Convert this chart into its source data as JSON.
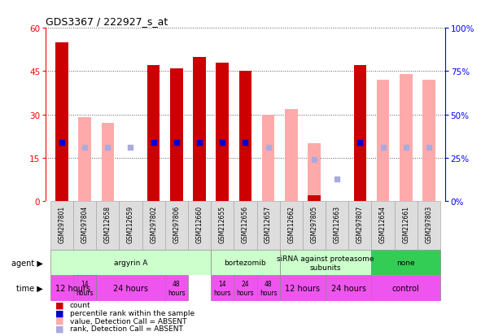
{
  "title": "GDS3367 / 222927_s_at",
  "samples": [
    "GSM297801",
    "GSM297804",
    "GSM212658",
    "GSM212659",
    "GSM297802",
    "GSM297806",
    "GSM212660",
    "GSM212655",
    "GSM212656",
    "GSM212657",
    "GSM212662",
    "GSM297805",
    "GSM212663",
    "GSM297807",
    "GSM212654",
    "GSM212661",
    "GSM297803"
  ],
  "count_present": [
    55,
    0,
    0,
    0,
    47,
    46,
    50,
    48,
    45,
    0,
    0,
    2,
    0,
    47,
    0,
    0,
    0
  ],
  "count_absent": [
    0,
    29,
    27,
    0,
    0,
    0,
    0,
    0,
    0,
    30,
    32,
    20,
    0,
    0,
    42,
    44,
    42
  ],
  "rank_present": [
    34,
    0,
    0,
    0,
    34,
    34,
    34,
    34,
    34,
    0,
    0,
    0,
    0,
    34,
    0,
    0,
    0
  ],
  "rank_absent": [
    0,
    31,
    31,
    31,
    0,
    0,
    0,
    0,
    0,
    31,
    0,
    24,
    13,
    0,
    31,
    31,
    31
  ],
  "ylim_left": [
    0,
    60
  ],
  "ylim_right": [
    0,
    100
  ],
  "yticks_left": [
    0,
    15,
    30,
    45,
    60
  ],
  "yticks_right": [
    0,
    25,
    50,
    75,
    100
  ],
  "ytick_labels_right": [
    "0%",
    "25%",
    "50%",
    "75%",
    "100%"
  ],
  "color_count_present": "#cc0000",
  "color_count_absent": "#ffaaaa",
  "color_rank_present": "#0000cc",
  "color_rank_absent": "#aaaadd",
  "bar_width": 0.55,
  "agent_data": [
    {
      "label": "argyrin A",
      "start": 0,
      "end": 7,
      "color": "#ccffcc"
    },
    {
      "label": "bortezomib",
      "start": 7,
      "end": 10,
      "color": "#ccffcc"
    },
    {
      "label": "siRNA against proteasome\nsubunits",
      "start": 10,
      "end": 14,
      "color": "#ccffcc"
    },
    {
      "label": "none",
      "start": 14,
      "end": 17,
      "color": "#33cc55"
    }
  ],
  "time_data": [
    {
      "label": "12 hours",
      "start": 0,
      "end": 2,
      "fs": 7
    },
    {
      "label": "14\nhours",
      "start": 1,
      "end": 2,
      "fs": 5.5
    },
    {
      "label": "24 hours",
      "start": 2,
      "end": 5,
      "fs": 7
    },
    {
      "label": "48\nhours",
      "start": 5,
      "end": 6,
      "fs": 5.5
    },
    {
      "label": "14\nhours",
      "start": 7,
      "end": 8,
      "fs": 5.5
    },
    {
      "label": "24\nhours",
      "start": 8,
      "end": 9,
      "fs": 5.5
    },
    {
      "label": "48\nhours",
      "start": 9,
      "end": 10,
      "fs": 5.5
    },
    {
      "label": "12 hours",
      "start": 10,
      "end": 12,
      "fs": 7
    },
    {
      "label": "24 hours",
      "start": 12,
      "end": 14,
      "fs": 7
    },
    {
      "label": "control",
      "start": 14,
      "end": 17,
      "fs": 7
    }
  ],
  "time_color": "#ee55ee",
  "legend": [
    {
      "color": "#cc0000",
      "label": "count"
    },
    {
      "color": "#0000cc",
      "label": "percentile rank within the sample"
    },
    {
      "color": "#ffaaaa",
      "label": "value, Detection Call = ABSENT"
    },
    {
      "color": "#aaaadd",
      "label": "rank, Detection Call = ABSENT"
    }
  ]
}
